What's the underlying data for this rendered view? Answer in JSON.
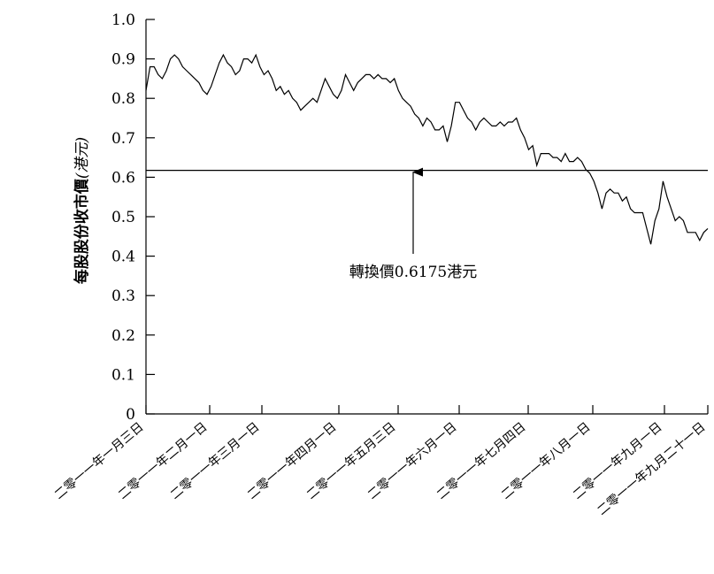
{
  "chart_data": {
    "type": "line",
    "ylabel_main": "每股股份收市價",
    "ylabel_unit": "(港元)",
    "ylim": [
      0,
      1.0
    ],
    "yticks": [
      "0",
      "0.1",
      "0.2",
      "0.3",
      "0.4",
      "0.5",
      "0.6",
      "0.7",
      "0.8",
      "0.9",
      "1.0"
    ],
    "x_tick_labels": [
      "二零一一年一月三日",
      "二零一一年二月一日",
      "二零一一年三月一日",
      "二零一一年四月一日",
      "二零一一年五月三日",
      "二零一一年六月一日",
      "二零一一年七月四日",
      "二零一一年八月一日",
      "二零一一年九月一日",
      "二零一一年九月二十一日"
    ],
    "series": [
      {
        "values": [
          0.82,
          0.88,
          0.88,
          0.86,
          0.85,
          0.87,
          0.9,
          0.91,
          0.9,
          0.88,
          0.87,
          0.86,
          0.85,
          0.84,
          0.82,
          0.81,
          0.83,
          0.86,
          0.89,
          0.91,
          0.89,
          0.88,
          0.86,
          0.87,
          0.9,
          0.9,
          0.89,
          0.91,
          0.88,
          0.86,
          0.87,
          0.85,
          0.82,
          0.83,
          0.81,
          0.82,
          0.8,
          0.79,
          0.77,
          0.78,
          0.79,
          0.8,
          0.79,
          0.82,
          0.85,
          0.83,
          0.81,
          0.8,
          0.82,
          0.86,
          0.84,
          0.82,
          0.84,
          0.85,
          0.86,
          0.86,
          0.85,
          0.86,
          0.85,
          0.85,
          0.84,
          0.85,
          0.82,
          0.8,
          0.79,
          0.78,
          0.76,
          0.75,
          0.73,
          0.75,
          0.74,
          0.72,
          0.72,
          0.73,
          0.69,
          0.73,
          0.79,
          0.79,
          0.77,
          0.75,
          0.74,
          0.72,
          0.74,
          0.75,
          0.74,
          0.73,
          0.73,
          0.74,
          0.73,
          0.74,
          0.74,
          0.75,
          0.72,
          0.7,
          0.67,
          0.68,
          0.63,
          0.66,
          0.66,
          0.66,
          0.65,
          0.65,
          0.64,
          0.66,
          0.64,
          0.64,
          0.65,
          0.64,
          0.62,
          0.61,
          0.59,
          0.56,
          0.52,
          0.56,
          0.57,
          0.56,
          0.56,
          0.54,
          0.55,
          0.52,
          0.51,
          0.51,
          0.51,
          0.47,
          0.43,
          0.49,
          0.52,
          0.59,
          0.55,
          0.52,
          0.49,
          0.5,
          0.49,
          0.46,
          0.46,
          0.46,
          0.44,
          0.46,
          0.47
        ]
      }
    ],
    "reference_line": {
      "value": 0.6175
    },
    "annotation": "轉換價0.6175港元",
    "grid": false,
    "legend": "none"
  }
}
